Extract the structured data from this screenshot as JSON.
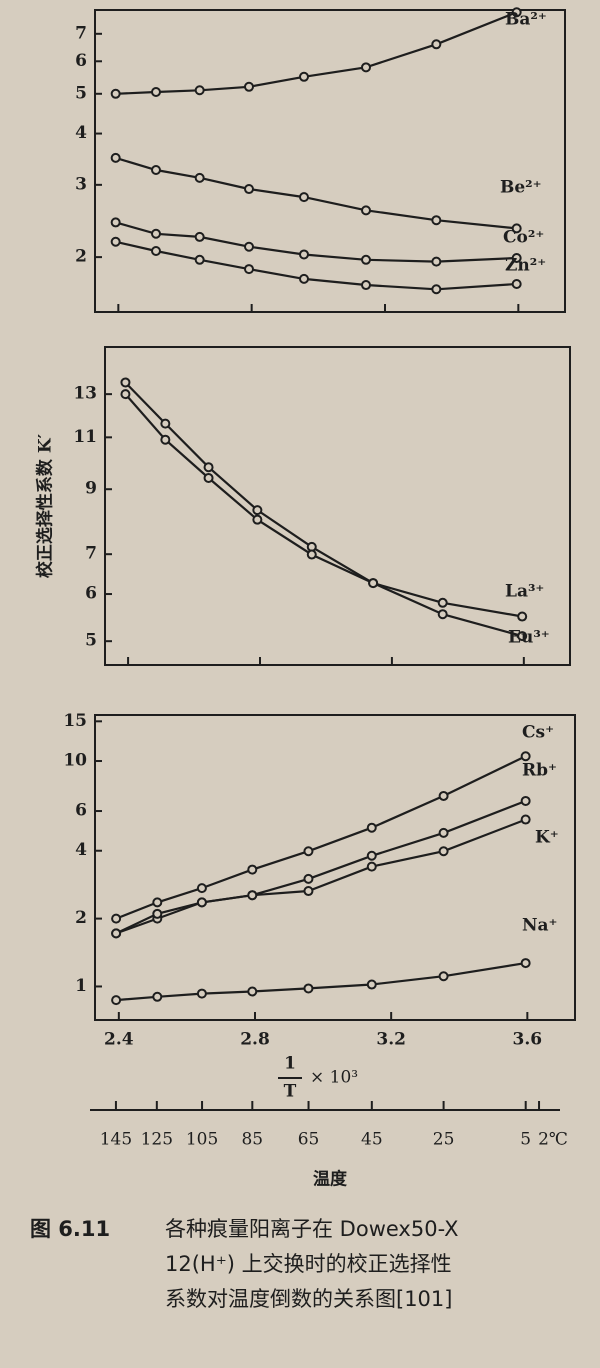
{
  "chart_data": [
    {
      "type": "line",
      "log_y": true,
      "x": [
        2.392,
        2.513,
        2.644,
        2.792,
        2.957,
        3.143,
        3.354,
        3.595
      ],
      "xlim": [
        2.33,
        3.74
      ],
      "ylim": [
        1.47,
        8
      ],
      "yticks": [
        2,
        3,
        4,
        5,
        6,
        7
      ],
      "series": [
        {
          "name": "Ba²⁺",
          "color": "#1e1e1e",
          "values": [
            5.0,
            5.05,
            5.1,
            5.2,
            5.5,
            5.8,
            6.6,
            7.9
          ]
        },
        {
          "name": "Be²⁺",
          "color": "#1e1e1e",
          "values": [
            3.49,
            3.26,
            3.12,
            2.93,
            2.8,
            2.6,
            2.46,
            2.35
          ]
        },
        {
          "name": "Co²⁺",
          "color": "#1e1e1e",
          "values": [
            2.43,
            2.28,
            2.24,
            2.12,
            2.03,
            1.97,
            1.95,
            1.99
          ]
        },
        {
          "name": "Zn²⁺",
          "color": "#1e1e1e",
          "values": [
            2.18,
            2.07,
            1.97,
            1.87,
            1.77,
            1.71,
            1.67,
            1.72
          ]
        }
      ]
    },
    {
      "type": "line",
      "log_y": true,
      "ylabel": "校正选择性系数 K′",
      "x": [
        2.392,
        2.513,
        2.644,
        2.792,
        2.957,
        3.143,
        3.354,
        3.595
      ],
      "xlim": [
        2.33,
        3.74
      ],
      "ylim": [
        4.56,
        15.6
      ],
      "yticks": [
        5,
        6,
        7,
        9,
        11,
        13
      ],
      "series": [
        {
          "name": "La³⁺",
          "color": "#1e1e1e",
          "values": [
            13.6,
            11.6,
            9.8,
            8.3,
            7.2,
            6.26,
            5.8,
            5.5
          ]
        },
        {
          "name": "Eu³⁺",
          "color": "#1e1e1e",
          "values": [
            13.0,
            10.9,
            9.4,
            8.0,
            6.99,
            6.26,
            5.55,
            5.1
          ]
        }
      ]
    },
    {
      "type": "line",
      "log_y": true,
      "xlabel": {
        "numerator": "1",
        "denominator": "T",
        "factor": "× 10³"
      },
      "x": [
        2.392,
        2.513,
        2.644,
        2.792,
        2.957,
        3.143,
        3.354,
        3.595
      ],
      "xlim": [
        2.33,
        3.74
      ],
      "xticks": [
        2.4,
        2.8,
        3.2,
        3.6
      ],
      "ylim": [
        0.71,
        16
      ],
      "yticks": [
        1,
        2,
        4,
        6,
        10,
        15
      ],
      "series": [
        {
          "name": "Cs⁺",
          "color": "#1e1e1e",
          "values": [
            2.0,
            2.36,
            2.73,
            3.3,
            3.98,
            5.06,
            7.0,
            10.5
          ]
        },
        {
          "name": "Rb⁺",
          "color": "#1e1e1e",
          "values": [
            1.72,
            2.0,
            2.36,
            2.54,
            3.0,
            3.8,
            4.8,
            6.65
          ]
        },
        {
          "name": "K⁺",
          "color": "#1e1e1e",
          "values": [
            1.72,
            2.1,
            2.36,
            2.54,
            2.65,
            3.4,
            3.98,
            5.5
          ]
        },
        {
          "name": "Na⁺",
          "color": "#1e1e1e",
          "values": [
            0.87,
            0.9,
            0.93,
            0.95,
            0.98,
            1.02,
            1.11,
            1.27
          ]
        }
      ]
    }
  ],
  "temperature_axis": {
    "label": "温度",
    "ticks": [
      145,
      125,
      105,
      85,
      65,
      45,
      25,
      5,
      {
        "value": 2,
        "label": "2℃"
      }
    ]
  },
  "caption": {
    "number": "图 6.11",
    "lines": [
      "各种痕量阳离子在 Dowex50-X",
      "12(H⁺) 上交换时的校正选择性",
      "系数对温度倒数的关系图[101]"
    ]
  }
}
